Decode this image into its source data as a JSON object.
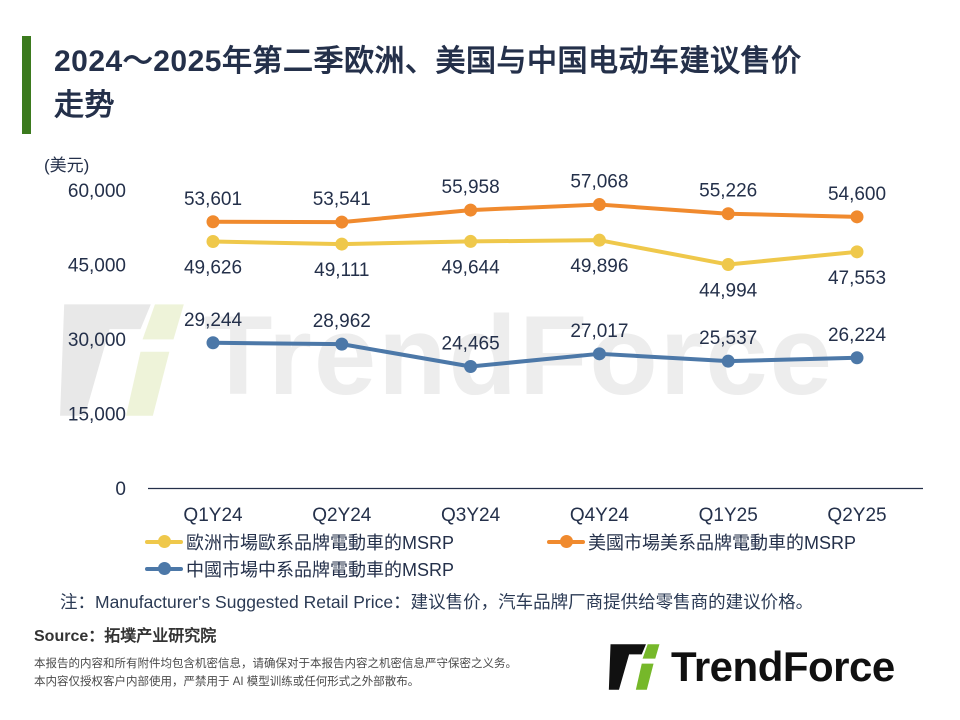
{
  "colors": {
    "accent_green": "#3b7a1e",
    "title_navy": "#24304a",
    "logo_green": "#76b82a",
    "logo_black": "#111111"
  },
  "header": {
    "title_line1": "2024～2025年第二季欧洲、美国与中国电动车建议售价",
    "title_line2": "走势"
  },
  "chart_data": {
    "type": "line",
    "title": "2024～2025年第二季欧洲、美国与中国电动车建议售价走势",
    "unit_label": "(美元)",
    "categories": [
      "Q1Y24",
      "Q2Y24",
      "Q3Y24",
      "Q4Y24",
      "Q1Y25",
      "Q2Y25"
    ],
    "series": [
      {
        "name": "歐洲市場歐系品牌電動車的MSRP",
        "color": "#EFC84B",
        "values": [
          49626,
          49111,
          49644,
          49896,
          44994,
          47553
        ],
        "label_position": "below"
      },
      {
        "name": "美國市場美系品牌電動車的MSRP",
        "color": "#F08A2E",
        "values": [
          53601,
          53541,
          55958,
          57068,
          55226,
          54600
        ],
        "label_position": "above"
      },
      {
        "name": "中國市場中系品牌電動車的MSRP",
        "color": "#4C78A8",
        "values": [
          29244,
          28962,
          24465,
          27017,
          25537,
          26224
        ],
        "label_position": "above"
      }
    ],
    "ylim": [
      0,
      60000
    ],
    "yticks": [
      0,
      15000,
      30000,
      45000,
      60000
    ],
    "grid": false,
    "legend_position": "bottom"
  },
  "note": "注：Manufacturer's Suggested Retail Price：建议售价，汽车品牌厂商提供给零售商的建议价格。",
  "source": "Source：拓墣产业研究院",
  "disclaimer": [
    "本报告的内容和所有附件均包含机密信息，请确保对于本报告内容之机密信息严守保密之义务。",
    "本内容仅授权客户内部使用，严禁用于 AI 模型训练或任何形式之外部散布。"
  ],
  "logo": {
    "text": "TrendForce"
  },
  "watermark": {
    "text": "TrendForce"
  }
}
